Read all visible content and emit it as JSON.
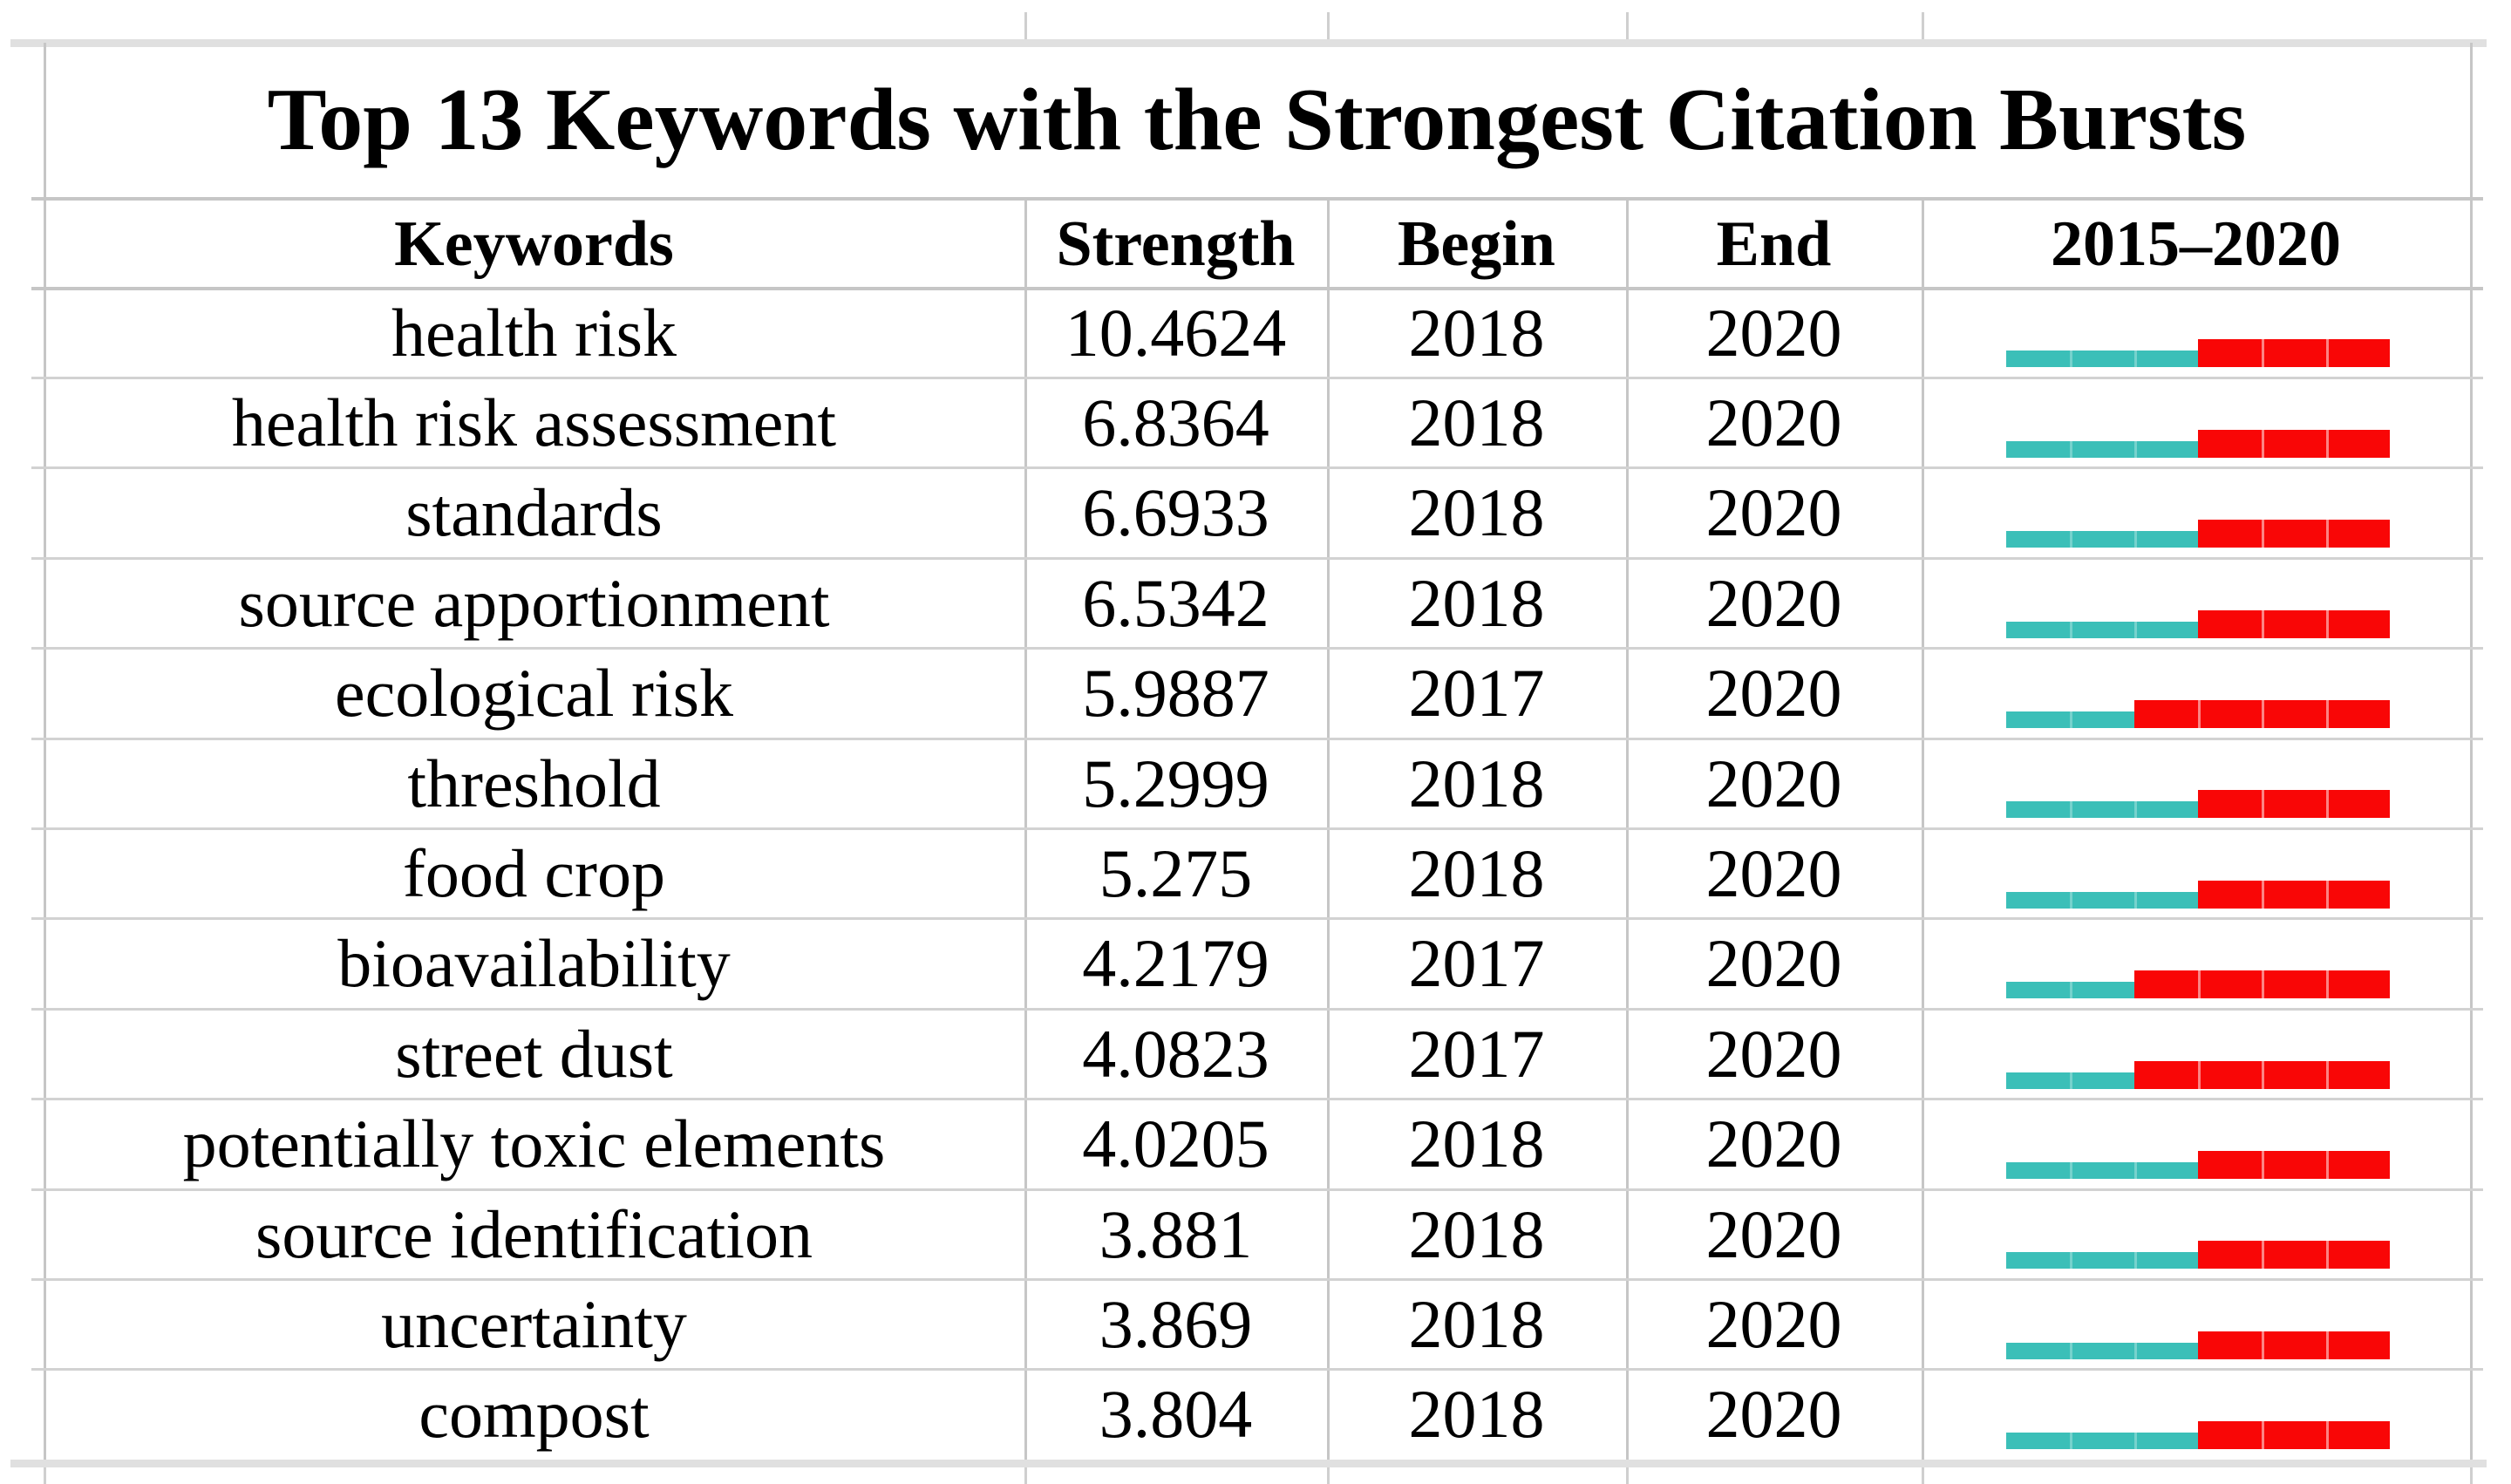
{
  "title": "Top 13 Keywords with the Strongest Citation Bursts",
  "columns": {
    "keywords": "Keywords",
    "strength": "Strength",
    "begin": "Begin",
    "end": "End",
    "period": "2015–2020"
  },
  "colors": {
    "pre_burst": "#3bbfb8",
    "burst": "#f90606",
    "gridline": "#c9c9c9"
  },
  "chart_data": {
    "type": "table",
    "title": "Top 13 Keywords with the Strongest Citation Bursts",
    "columns": [
      "Keywords",
      "Strength",
      "Begin",
      "End",
      "2015–2020"
    ],
    "timeline": {
      "start_year": 2015,
      "end_year": 2020
    },
    "rows": [
      {
        "keyword": "health risk",
        "strength": 10.4624,
        "begin": 2018,
        "end": 2020
      },
      {
        "keyword": "health risk assessment",
        "strength": 6.8364,
        "begin": 2018,
        "end": 2020
      },
      {
        "keyword": "standards",
        "strength": 6.6933,
        "begin": 2018,
        "end": 2020
      },
      {
        "keyword": "source apportionment",
        "strength": 6.5342,
        "begin": 2018,
        "end": 2020
      },
      {
        "keyword": "ecological risk",
        "strength": 5.9887,
        "begin": 2017,
        "end": 2020
      },
      {
        "keyword": "threshold",
        "strength": 5.2999,
        "begin": 2018,
        "end": 2020
      },
      {
        "keyword": "food crop",
        "strength": 5.275,
        "begin": 2018,
        "end": 2020
      },
      {
        "keyword": "bioavailability",
        "strength": 4.2179,
        "begin": 2017,
        "end": 2020
      },
      {
        "keyword": "street dust",
        "strength": 4.0823,
        "begin": 2017,
        "end": 2020
      },
      {
        "keyword": "potentially toxic elements",
        "strength": 4.0205,
        "begin": 2018,
        "end": 2020
      },
      {
        "keyword": "source identification",
        "strength": 3.881,
        "begin": 2018,
        "end": 2020
      },
      {
        "keyword": "uncertainty",
        "strength": 3.869,
        "begin": 2018,
        "end": 2020
      },
      {
        "keyword": "compost",
        "strength": 3.804,
        "begin": 2018,
        "end": 2020
      }
    ]
  }
}
